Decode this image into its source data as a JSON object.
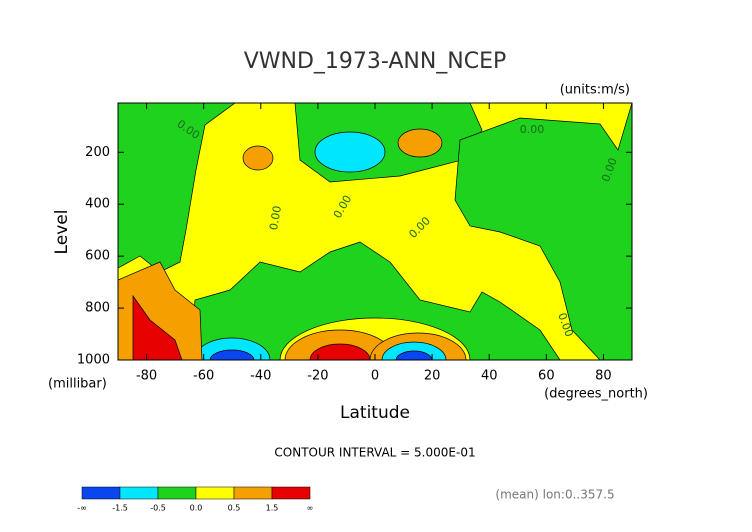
{
  "chart_data": {
    "type": "contour",
    "title": "VWND_1973-ANN_NCEP",
    "units": "(units:m/s)",
    "x_label": "Latitude",
    "x_unit": "(degrees_north)",
    "y_label": "Level",
    "y_unit": "(millibar)",
    "xlim": [
      -90,
      90
    ],
    "xticks": [
      -80,
      -60,
      -40,
      -20,
      0,
      20,
      40,
      60,
      80
    ],
    "ylim": [
      1000,
      10
    ],
    "yticks": [
      200,
      400,
      600,
      800,
      1000
    ],
    "note": "CONTOUR INTERVAL = 5.000E-01",
    "footnote": "(mean) lon:0..357.5",
    "colorbar": {
      "colors": [
        "#0a46f0",
        "#00e6ff",
        "#1ed21e",
        "#ffff00",
        "#f5a000",
        "#e60000"
      ],
      "labels": [
        "-∞",
        "-1.5",
        "-0.5",
        "0.0",
        "0.5",
        "1.5",
        "∞"
      ]
    },
    "contour_labels": [
      "0.00",
      "0.00",
      "0.00",
      "0.00",
      "0.00",
      "0.00",
      "0.00"
    ]
  }
}
